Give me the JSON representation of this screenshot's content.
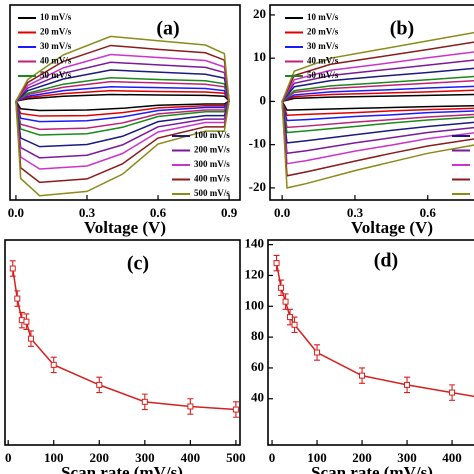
{
  "chart_data": [
    {
      "type": "line",
      "panel_label": "(a)",
      "xlabel": "Voltage (V)",
      "x": [
        0,
        0.05,
        0.2,
        0.4,
        0.6,
        0.8,
        0.88,
        0.9,
        0.88,
        0.8,
        0.6,
        0.45,
        0.3,
        0.1,
        0.02,
        0
      ],
      "xlim": [
        -0.025,
        0.946
      ],
      "ylim": [
        -23,
        22.3
      ],
      "xticks": [
        {
          "value": 0,
          "label": "0.0"
        },
        0.3,
        0.6,
        0.9
      ],
      "series": [
        {
          "name": "10 mV/s",
          "color": "#000000",
          "values": [
            0,
            0.5,
            1.1,
            1.5,
            1.4,
            1.3,
            1.1,
            0,
            -0.7,
            -0.7,
            -1,
            -1.7,
            -2.1,
            -2.2,
            -1.8,
            0
          ]
        },
        {
          "name": "20 mV/s",
          "color": "#e00000",
          "values": [
            0,
            0.8,
            1.7,
            2.4,
            2.2,
            2.1,
            1.8,
            0,
            -1.1,
            -1.1,
            -1.6,
            -2.7,
            -3.4,
            -3.5,
            -2.9,
            0
          ]
        },
        {
          "name": "30 mV/s",
          "color": "#1a1aff",
          "values": [
            0,
            1.1,
            2.4,
            3.3,
            3.1,
            2.9,
            2.4,
            0,
            -1.5,
            -1.5,
            -2.2,
            -3.7,
            -4.6,
            -4.8,
            -4,
            0
          ]
        },
        {
          "name": "40 mV/s",
          "color": "#c0207a",
          "values": [
            0,
            1.5,
            3.2,
            4.5,
            4.2,
            3.9,
            3.3,
            0,
            -2.1,
            -2.1,
            -3,
            -5.1,
            -6.3,
            -6.6,
            -5.4,
            0
          ]
        },
        {
          "name": "50 mV/s",
          "color": "#1a8a1a",
          "values": [
            0,
            1.8,
            3.9,
            5.4,
            5,
            4.7,
            4,
            0,
            -2.5,
            -2.5,
            -3.6,
            -6.1,
            -7.6,
            -7.9,
            -6.5,
            0
          ]
        },
        {
          "name": "100 mV/s",
          "color": "#1a1a80",
          "values": [
            0,
            2.4,
            5.1,
            7.2,
            6.7,
            6.2,
            5.3,
            0,
            -3.4,
            -3.4,
            -4.8,
            -8.2,
            -10.1,
            -10.6,
            -8.6,
            0
          ]
        },
        {
          "name": "200 mV/s",
          "color": "#7a1a9a",
          "values": [
            0,
            3,
            6.4,
            9,
            8.4,
            7.8,
            6.6,
            0,
            -4.2,
            -4.2,
            -6,
            -10.2,
            -12.6,
            -13.2,
            -10.8,
            0
          ]
        },
        {
          "name": "300 mV/s",
          "color": "#cc33cc",
          "values": [
            0,
            3.6,
            7.7,
            10.8,
            10.1,
            9.4,
            7.9,
            0,
            -5,
            -5,
            -7.2,
            -12.2,
            -15.1,
            -15.8,
            -13,
            0
          ]
        },
        {
          "name": "400 mV/s",
          "color": "#8b1a1a",
          "values": [
            0,
            4.3,
            9.2,
            12.9,
            12,
            11.2,
            9.5,
            0,
            -6,
            -6,
            -8.6,
            -14.6,
            -18.1,
            -18.9,
            -15.5,
            0
          ]
        },
        {
          "name": "500 mV/s",
          "color": "#8b8b1a",
          "values": [
            0,
            5,
            10.7,
            15,
            14,
            13,
            11,
            0,
            -7,
            -7,
            -10,
            -17,
            -21,
            -22,
            -18,
            0
          ]
        }
      ]
    },
    {
      "type": "line",
      "panel_label": "(b)",
      "xlabel": "Voltage (V)",
      "x": [
        0,
        0.05,
        0.2,
        0.4,
        0.6,
        0.8,
        0.88,
        0.9,
        0.88,
        0.8,
        0.6,
        0.45,
        0.3,
        0.1,
        0.02,
        0
      ],
      "xlim": [
        -0.05,
        0.98
      ],
      "ylim": [
        -22.8,
        22.3
      ],
      "xticks": [
        {
          "value": 0,
          "label": "0.0"
        },
        0.3,
        0.6
      ],
      "yticks": [
        -20,
        -10,
        0,
        10,
        20
      ],
      "series": [
        {
          "name": "10 mV/s",
          "color": "#000000",
          "values": [
            0,
            0.7,
            1,
            1.2,
            1.4,
            1.6,
            1.7,
            0,
            -0.9,
            -1,
            -1.2,
            -1.4,
            -1.6,
            -1.9,
            -2,
            0
          ]
        },
        {
          "name": "20 mV/s",
          "color": "#e00000",
          "values": [
            0,
            1.1,
            1.6,
            1.9,
            2.2,
            2.6,
            2.7,
            0,
            -1.4,
            -1.6,
            -1.9,
            -2.2,
            -2.6,
            -3,
            -3.2,
            0
          ]
        },
        {
          "name": "30 mV/s",
          "color": "#1a1aff",
          "values": [
            0,
            1.5,
            2.2,
            2.6,
            3.1,
            3.5,
            3.7,
            0,
            -2,
            -2.2,
            -2.6,
            -3.1,
            -3.5,
            -4.2,
            -4.4,
            0
          ]
        },
        {
          "name": "40 mV/s",
          "color": "#c0207a",
          "values": [
            0,
            2.1,
            3,
            3.6,
            4.2,
            4.8,
            5.1,
            0,
            -2.7,
            -3,
            -3.6,
            -4.2,
            -4.8,
            -5.7,
            -6,
            0
          ]
        },
        {
          "name": "50 mV/s",
          "color": "#1a8a1a",
          "values": [
            0,
            2.5,
            3.6,
            4.3,
            5,
            5.8,
            6.1,
            0,
            -3.2,
            -3.6,
            -4.3,
            -5,
            -5.8,
            -6.8,
            -7.2,
            0
          ]
        },
        {
          "name": "100 mV/s",
          "color": "#1a1a80",
          "values": [
            0,
            3.4,
            4.8,
            5.8,
            6.7,
            7.7,
            8.2,
            0,
            -4.3,
            -4.8,
            -5.8,
            -6.7,
            -7.7,
            -9.1,
            -9.6,
            0
          ]
        },
        {
          "name": "200 mV/s",
          "color": "#7a1a9a",
          "values": [
            0,
            4.2,
            6,
            7.2,
            8.4,
            9.6,
            10.2,
            0,
            -5.4,
            -6,
            -7.2,
            -8.4,
            -9.6,
            -11.4,
            -12,
            0
          ]
        },
        {
          "name": "300 mV/s",
          "color": "#cc33cc",
          "values": [
            0,
            5,
            7.2,
            8.6,
            10.1,
            11.5,
            12.2,
            0,
            -6.5,
            -7.2,
            -8.6,
            -10.1,
            -11.5,
            -13.7,
            -14.4,
            0
          ]
        },
        {
          "name": "400 mV/s",
          "color": "#8b1a1a",
          "values": [
            0,
            6,
            8.6,
            10.3,
            12,
            13.8,
            14.6,
            0,
            -7.7,
            -8.6,
            -10.3,
            -12,
            -13.8,
            -16.3,
            -17.2,
            0
          ]
        },
        {
          "name": "500 mV/s",
          "color": "#8b8b1a",
          "values": [
            0,
            7,
            10,
            12,
            14,
            16,
            17,
            0,
            -9,
            -10,
            -12,
            -14,
            -16,
            -19,
            -20,
            0
          ]
        }
      ]
    },
    {
      "type": "errorbar",
      "panel_label": "(c)",
      "xlabel": "Scan rate (mV/s)",
      "x": [
        10,
        20,
        30,
        40,
        50,
        100,
        200,
        300,
        400,
        500
      ],
      "xlim": [
        -7,
        509
      ],
      "ylim": [
        10,
        143
      ],
      "xticks": [
        0,
        100,
        200,
        300,
        400,
        500
      ],
      "color": "#d62020",
      "values": [
        124.5,
        105,
        91,
        90,
        79,
        62,
        49,
        38,
        35,
        33
      ],
      "errors": [
        5,
        5,
        5,
        5,
        5,
        5,
        5,
        5,
        5,
        5
      ]
    },
    {
      "type": "errorbar",
      "panel_label": "(d)",
      "xlabel": "Scan rate (mV/s)",
      "x": [
        10,
        20,
        30,
        40,
        50,
        100,
        200,
        300,
        400,
        500
      ],
      "xlim": [
        -9,
        551
      ],
      "ylim": [
        10,
        143
      ],
      "xticks": [
        0,
        100,
        200,
        300,
        400
      ],
      "yticks": [
        40,
        60,
        80,
        100,
        120,
        140
      ],
      "color": "#d62020",
      "values": [
        128,
        112,
        103,
        93,
        88,
        70,
        55,
        49,
        44,
        39
      ],
      "errors": [
        5,
        5,
        5,
        5,
        5,
        5,
        5,
        5,
        5,
        5
      ]
    }
  ]
}
